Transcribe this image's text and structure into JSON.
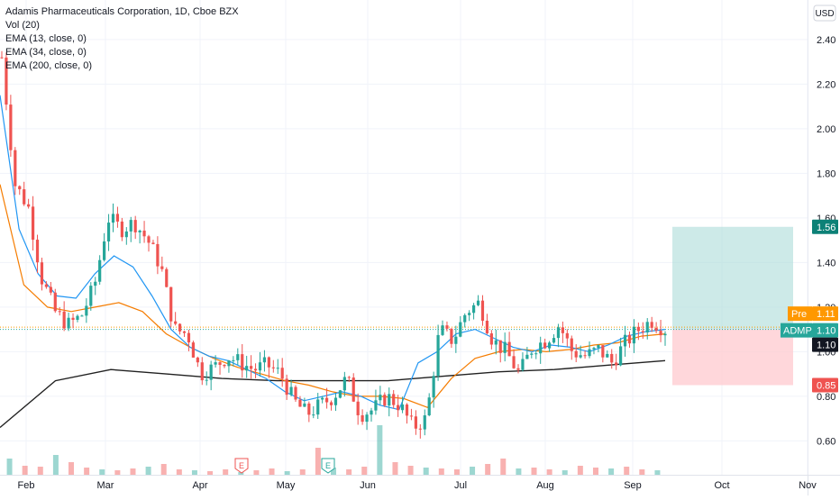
{
  "legend": {
    "title": "Adamis Pharmaceuticals Corporation, 1D, Cboe BZX",
    "vol": "Vol (20)",
    "ema13": "EMA (13, close, 0)",
    "ema34": "EMA (34, close, 0)",
    "ema200": "EMA (200, close, 0)"
  },
  "currency_badge": "USD",
  "price_tags": {
    "target": "1.56",
    "pre_label": "Pre",
    "pre_value": "1.11",
    "ticker_label": "ADMP",
    "ticker_value": "1.10",
    "last": "1.10",
    "stop": "0.85"
  },
  "events": [
    "E",
    "E"
  ],
  "colors": {
    "up": "#26a69a",
    "down": "#ef5350",
    "ema13": "#2196f3",
    "ema34": "#f57c00",
    "ema200": "#212121",
    "target_zone": "#b2dfdb",
    "stop_zone": "#ffcdd2",
    "pre": "#ff9800"
  },
  "chart_data": {
    "type": "candlestick",
    "y_axis": {
      "ticks": [
        "2.40",
        "2.20",
        "2.00",
        "1.80",
        "1.60",
        "1.40",
        "1.20",
        "1.00",
        "0.80",
        "0.60"
      ],
      "ylim": [
        0.44,
        2.46
      ]
    },
    "x_axis": {
      "ticks": [
        "Feb",
        "Mar",
        "Apr",
        "May",
        "Jun",
        "Jul",
        "Aug",
        "Sep",
        "Oct",
        "Nov"
      ]
    },
    "price_path": [
      2.32,
      1.75,
      1.65,
      1.33,
      1.18,
      1.12,
      1.16,
      1.3,
      1.6,
      1.55,
      1.58,
      1.5,
      1.38,
      1.1,
      1.08,
      0.9,
      0.93,
      0.98,
      0.95,
      0.92,
      0.94,
      0.9,
      0.78,
      0.72,
      0.76,
      0.8,
      0.88,
      0.72,
      0.74,
      0.8,
      0.76,
      0.66,
      0.7,
      1.1,
      1.05,
      1.18,
      1.22,
      1.05,
      1.0,
      0.9,
      1.02,
      1.05,
      1.12,
      1.0,
      0.98,
      1.01,
      0.95,
      1.04,
      1.1,
      1.14,
      1.1
    ],
    "ema13": [
      2.15,
      1.55,
      1.35,
      1.25,
      1.24,
      1.35,
      1.43,
      1.38,
      1.25,
      1.1,
      1.02,
      0.98,
      0.96,
      0.92,
      0.88,
      0.82,
      0.78,
      0.8,
      0.82,
      0.8,
      0.76,
      0.74,
      0.95,
      1.0,
      1.08,
      1.1,
      1.06,
      1.02,
      1.0,
      1.03,
      1.02,
      1.0,
      1.03,
      1.07,
      1.09,
      1.1
    ],
    "ema34": [
      1.75,
      1.3,
      1.2,
      1.18,
      1.2,
      1.22,
      1.18,
      1.08,
      1.02,
      0.97,
      0.93,
      0.9,
      0.87,
      0.85,
      0.82,
      0.8,
      0.8,
      0.79,
      0.75,
      0.88,
      0.97,
      1.0,
      1.01,
      1.0,
      1.01,
      1.03,
      1.04,
      1.07,
      1.08
    ],
    "ema200": [
      0.66,
      0.87,
      0.92,
      0.9,
      0.88,
      0.87,
      0.87,
      0.87,
      0.89,
      0.91,
      0.92,
      0.94,
      0.96
    ],
    "trade": {
      "target": 1.56,
      "entry": 1.1,
      "stop": 0.85
    },
    "volume": [
      18,
      10,
      9,
      22,
      14,
      8,
      6,
      5,
      7,
      9,
      12,
      6,
      5,
      4,
      6,
      3,
      5,
      7,
      4,
      6,
      30,
      8,
      6,
      9,
      55,
      14,
      10,
      8,
      7,
      6,
      9,
      12,
      18,
      7,
      8,
      6,
      5,
      10,
      8,
      7,
      9,
      6,
      5
    ]
  }
}
